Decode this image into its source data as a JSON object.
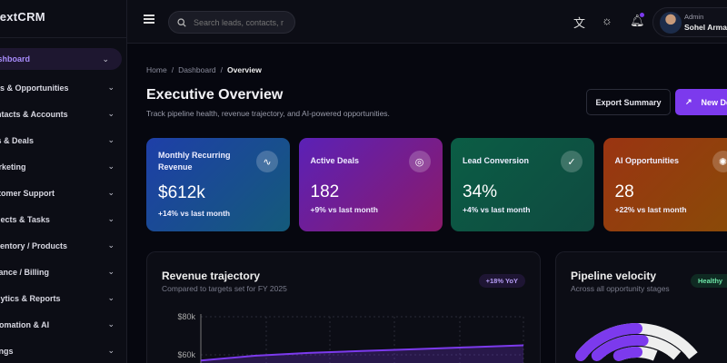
{
  "sidebar": {
    "logo": "NextCRM",
    "items": [
      {
        "label": "Dashboard"
      },
      {
        "label": "Leads & Opportunities"
      },
      {
        "label": "Contacts & Accounts"
      },
      {
        "label": "Sales & Deals"
      },
      {
        "label": "Marketing"
      },
      {
        "label": "Customer Support"
      },
      {
        "label": "Projects & Tasks"
      },
      {
        "label": "Inventory / Products"
      },
      {
        "label": "Finance / Billing"
      },
      {
        "label": "Analytics & Reports"
      },
      {
        "label": "Automation & AI"
      },
      {
        "label": "Settings"
      }
    ]
  },
  "header": {
    "search_placeholder": "Search leads, contacts, r",
    "user_role": "Admin",
    "user_name": "Sohel Arman",
    "notification_dot_color": "#7c3aed"
  },
  "breadcrumb": [
    "Home",
    "Dashboard",
    "Overview"
  ],
  "page": {
    "title": "Executive Overview",
    "subtitle": "Track pipeline health, revenue trajectory, and AI-powered opportunities.",
    "export_label": "Export Summary",
    "new_label": "New Deal"
  },
  "kpis": [
    {
      "label": "Monthly Recurring Revenue",
      "value": "$612k",
      "delta": "+14% vs last month",
      "icon": "activity-icon",
      "colors": [
        "#1e3fa8",
        "#145a7a"
      ]
    },
    {
      "label": "Active Deals",
      "value": "182",
      "delta": "+9% vs last month",
      "icon": "target-icon",
      "colors": [
        "#5b21b6",
        "#8b1a6a"
      ]
    },
    {
      "label": "Lead Conversion",
      "value": "34%",
      "delta": "+4% vs last month",
      "icon": "check-circle-icon",
      "colors": [
        "#0b5d45",
        "#0f4a40"
      ]
    },
    {
      "label": "AI Opportunities",
      "value": "28",
      "delta": "+22% vs last month",
      "icon": "brain-icon",
      "colors": [
        "#9a3412",
        "#8a4a08"
      ]
    }
  ],
  "revenue": {
    "title": "Revenue trajectory",
    "subtitle": "Compared to targets set for FY 2025",
    "badge": "+18% YoY",
    "chart_data": {
      "type": "area",
      "y_ticks": [
        "$80k",
        "$60k"
      ],
      "y_tick_values": [
        80000,
        60000
      ],
      "values": [
        57000,
        59500,
        61000,
        62000,
        63000,
        64000,
        65000
      ],
      "color": "#7c3aed",
      "grid": true
    }
  },
  "pipeline": {
    "title": "Pipeline velocity",
    "subtitle": "Across all opportunity stages",
    "badge": "Healthy",
    "chart_data": {
      "type": "radial-bar",
      "values": [
        0.75,
        0.8,
        0.7,
        0.65
      ],
      "color": "#7c3aed",
      "track_color": "#eeeeee"
    }
  }
}
